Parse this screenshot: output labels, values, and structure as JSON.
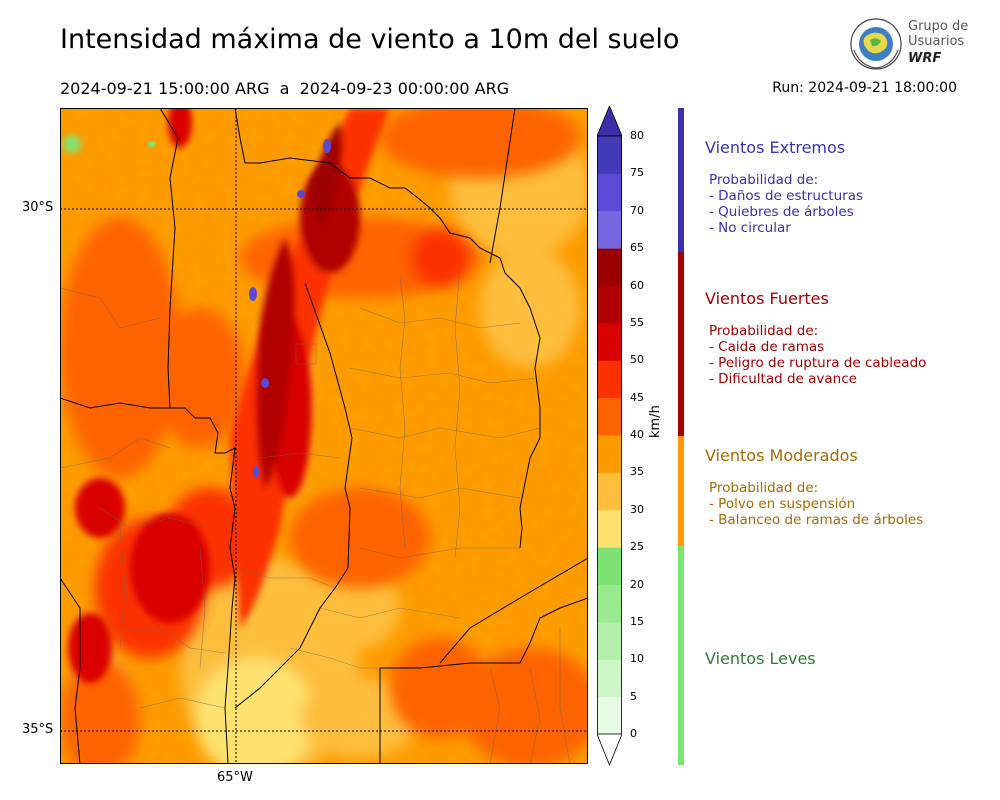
{
  "header": {
    "title": "Intensidad máxima de viento a 10m del suelo",
    "period": "2024-09-21 15:00:00 ARG  a  2024-09-23 00:00:00 ARG",
    "run": "Run: 2024-09-21 18:00:00"
  },
  "logo": {
    "line1": "Grupo de",
    "line2": "Usuarios",
    "brand": "WRF"
  },
  "map": {
    "lat_labels": [
      "30°S",
      "35°S"
    ],
    "lon_labels": [
      "65°W"
    ]
  },
  "colorbar": {
    "unit": "km/h",
    "ticks": [
      "0",
      "5",
      "10",
      "15",
      "20",
      "25",
      "30",
      "35",
      "40",
      "45",
      "50",
      "55",
      "60",
      "65",
      "70",
      "75",
      "80"
    ],
    "colors": [
      "#e6fbe3",
      "#cdf5c7",
      "#b3efab",
      "#99e98f",
      "#7fe373",
      "#fee26f",
      "#fdbe3c",
      "#fd9a00",
      "#fd6400",
      "#fb3200",
      "#d90000",
      "#b00000",
      "#9b0000",
      "#7668e0",
      "#5a4ad6",
      "#433ab8"
    ],
    "top_color": "#3a2fa6"
  },
  "legend": [
    {
      "title": "Vientos Extremos",
      "color": "#3b2fb5",
      "lines": [
        "Probabilidad de:",
        "- Daños de estructuras",
        "- Quiebres de árboles",
        "- No circular"
      ]
    },
    {
      "title": "Vientos Fuertes",
      "color": "#a50000",
      "lines": [
        "Probabilidad de:",
        "- Caida de ramas",
        "- Peligro de ruptura de cableado",
        "- Dificultad de avance"
      ]
    },
    {
      "title": "Vientos Moderados",
      "color": "#a56a00",
      "lines": [
        "Probabilidad de:",
        "- Polvo en suspensión",
        "- Balanceo de ramas de árboles"
      ]
    },
    {
      "title": "Vientos Leves",
      "color": "#2e7d32",
      "lines": []
    }
  ],
  "legend_bar_colors": [
    "#3b2fb5",
    "#a50000",
    "#ff9800",
    "#7ae86f"
  ]
}
